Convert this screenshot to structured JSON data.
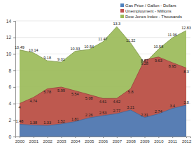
{
  "chart_data": {
    "type": "area",
    "categories": [
      "2000",
      "2001",
      "2002",
      "2003",
      "2004",
      "2005",
      "2006",
      "2007",
      "2008",
      "2009",
      "2010",
      "2011",
      "2012"
    ],
    "series": [
      {
        "name": "Gas Price / Gallon - Dollars",
        "color": "#4f81bd",
        "values": [
          1.48,
          1.38,
          1.33,
          1.52,
          1.81,
          2.26,
          2.53,
          2.77,
          3.21,
          2.31,
          2.74,
          3.4,
          3.8
        ]
      },
      {
        "name": "Unemployment - Millions",
        "color": "#c0504d",
        "values": [
          4.0,
          4.74,
          5.78,
          5.99,
          5.54,
          5.08,
          4.61,
          4.62,
          5.8,
          9.28,
          9.63,
          8.95,
          8.3
        ]
      },
      {
        "name": "Dow Jones Index - Thousands",
        "color": "#9bbb59",
        "values": [
          10.49,
          10.14,
          9.18,
          9.01,
          10.33,
          10.54,
          11.47,
          13.3,
          11.32,
          8.87,
          10.58,
          11.96,
          12.83
        ]
      }
    ],
    "ylim": [
      0,
      14
    ],
    "yticks": [
      0,
      2,
      4,
      6,
      8,
      10,
      12,
      14
    ],
    "grid": true,
    "legend": "top-right",
    "data_labels": true
  }
}
